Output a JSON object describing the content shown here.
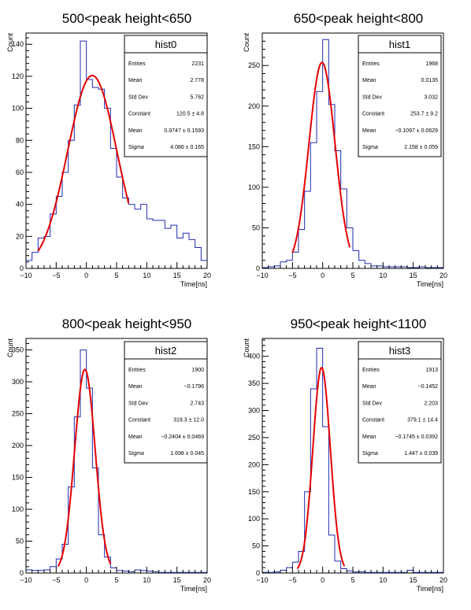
{
  "chart_data": [
    {
      "type": "bar",
      "title": "500<peak height<650",
      "xlabel": "Time[ns]",
      "ylabel": "Count",
      "xlim": [
        -10,
        20
      ],
      "ylim": [
        0,
        147
      ],
      "x_ticks": [
        -10,
        -5,
        0,
        5,
        10,
        15,
        20
      ],
      "y_ticks": [
        0,
        20,
        40,
        60,
        80,
        100,
        120,
        140
      ],
      "bin_edges_start": -10,
      "bin_width": 1,
      "values": [
        5,
        10,
        19,
        20,
        34,
        45,
        60,
        80,
        102,
        142,
        118,
        113,
        112,
        100,
        75,
        57,
        44,
        40,
        37,
        40,
        31,
        30,
        30,
        25,
        27,
        19,
        22,
        18,
        13,
        5
      ],
      "fit": {
        "constant": 120.5,
        "mean": 0.9747,
        "sigma": 4.086,
        "x_range": [
          -8,
          7
        ]
      },
      "stats": {
        "name": "hist0",
        "rows": [
          {
            "label": "Entries",
            "value": "2231"
          },
          {
            "label": "Mean",
            "value": "2.778"
          },
          {
            "label": "Std Dev",
            "value": "5.762"
          },
          {
            "label": "Constant",
            "value": "120.5 ± 4.8"
          },
          {
            "label": "Mean",
            "value": "0.9747 ± 0.1593"
          },
          {
            "label": "Sigma",
            "value": "4.086 ± 0.165"
          }
        ]
      }
    },
    {
      "type": "bar",
      "title": "650<peak height<800",
      "xlabel": "Time[ns]",
      "ylabel": "Count",
      "xlim": [
        -10,
        20
      ],
      "ylim": [
        0,
        290
      ],
      "x_ticks": [
        -10,
        -5,
        0,
        5,
        10,
        15,
        20
      ],
      "y_ticks": [
        0,
        50,
        100,
        150,
        200,
        250
      ],
      "bin_edges_start": -10,
      "bin_width": 1,
      "values": [
        1,
        2,
        3,
        8,
        10,
        20,
        48,
        95,
        155,
        218,
        282,
        202,
        145,
        98,
        50,
        22,
        10,
        6,
        3,
        3,
        2,
        2,
        2,
        2,
        1,
        1,
        2,
        1,
        1,
        1
      ],
      "fit": {
        "constant": 253.7,
        "mean": -0.1097,
        "sigma": 2.158,
        "x_range": [
          -5,
          4.5
        ]
      },
      "stats": {
        "name": "hist1",
        "rows": [
          {
            "label": "Entries",
            "value": "1968"
          },
          {
            "label": "Mean",
            "value": "0.0135"
          },
          {
            "label": "Std Dev",
            "value": "3.032"
          },
          {
            "label": "Constant",
            "value": "253.7 ± 9.2"
          },
          {
            "label": "Mean",
            "value": "−0.1097 ± 0.0629"
          },
          {
            "label": "Sigma",
            "value": "2.158 ± 0.059"
          }
        ]
      }
    },
    {
      "type": "bar",
      "title": "800<peak height<950",
      "xlabel": "Time[ns]",
      "ylabel": "Count",
      "xlim": [
        -10,
        20
      ],
      "ylim": [
        0,
        368
      ],
      "x_ticks": [
        -10,
        -5,
        0,
        5,
        10,
        15,
        20
      ],
      "y_ticks": [
        0,
        50,
        100,
        150,
        200,
        250,
        300,
        350
      ],
      "bin_edges_start": -10,
      "bin_width": 1,
      "values": [
        5,
        4,
        4,
        5,
        10,
        22,
        45,
        135,
        245,
        350,
        290,
        165,
        60,
        25,
        8,
        4,
        3,
        2,
        5,
        4,
        3,
        2,
        1,
        1,
        1,
        1,
        1,
        1,
        1,
        1
      ],
      "fit": {
        "constant": 319.3,
        "mean": -0.2404,
        "sigma": 1.698,
        "x_range": [
          -4.7,
          4
        ]
      },
      "stats": {
        "name": "hist2",
        "rows": [
          {
            "label": "Entries",
            "value": "1900"
          },
          {
            "label": "Mean",
            "value": "−0.1796"
          },
          {
            "label": "Std Dev",
            "value": "2.743"
          },
          {
            "label": "Constant",
            "value": "319.3 ± 12.0"
          },
          {
            "label": "Mean",
            "value": "−0.2404 ± 0.0469"
          },
          {
            "label": "Sigma",
            "value": "1.698 ± 0.045"
          }
        ]
      }
    },
    {
      "type": "bar",
      "title": "950<peak height<1100",
      "xlabel": "Time[ns]",
      "ylabel": "Count",
      "xlim": [
        -10,
        20
      ],
      "ylim": [
        0,
        433
      ],
      "x_ticks": [
        -10,
        -5,
        0,
        5,
        10,
        15,
        20
      ],
      "y_ticks": [
        0,
        50,
        100,
        150,
        200,
        250,
        300,
        350,
        400
      ],
      "bin_edges_start": -10,
      "bin_width": 1,
      "values": [
        1,
        1,
        2,
        5,
        10,
        20,
        40,
        150,
        340,
        415,
        270,
        70,
        22,
        8,
        4,
        2,
        2,
        1,
        1,
        1,
        1,
        1,
        1,
        1,
        5,
        1,
        1,
        1,
        1,
        1
      ],
      "fit": {
        "constant": 379.1,
        "mean": -0.1745,
        "sigma": 1.447,
        "x_range": [
          -4.2,
          3.6
        ]
      },
      "stats": {
        "name": "hist3",
        "rows": [
          {
            "label": "Entries",
            "value": "1913"
          },
          {
            "label": "Mean",
            "value": "−0.1452"
          },
          {
            "label": "Std Dev",
            "value": "2.203"
          },
          {
            "label": "Constant",
            "value": "379.1 ± 14.4"
          },
          {
            "label": "Mean",
            "value": "−0.1745 ± 0.0392"
          },
          {
            "label": "Sigma",
            "value": "1.447 ± 0.039"
          }
        ]
      }
    }
  ],
  "colors": {
    "histogram": "#1f2bb0",
    "fit": "#e60000",
    "axis": "#000000"
  }
}
